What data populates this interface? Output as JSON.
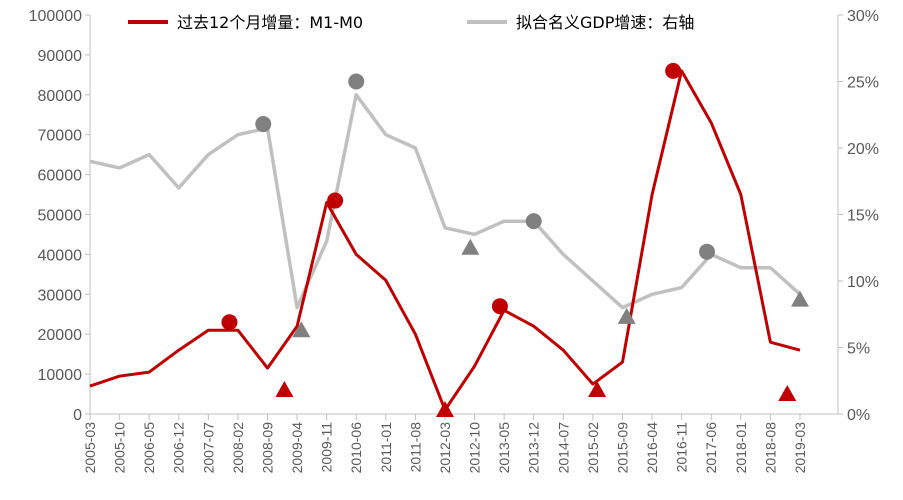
{
  "chart_data": {
    "type": "line",
    "legend_position": "top",
    "grid": false,
    "x": [
      "2005-03",
      "2005-10",
      "2006-05",
      "2006-12",
      "2007-07",
      "2008-02",
      "2008-09",
      "2009-04",
      "2009-11",
      "2010-06",
      "2011-01",
      "2011-08",
      "2012-03",
      "2012-10",
      "2013-05",
      "2013-12",
      "2014-07",
      "2015-02",
      "2015-09",
      "2016-04",
      "2016-11",
      "2017-06",
      "2018-01",
      "2018-08",
      "2019-03"
    ],
    "x_labels": [
      "2005-03",
      "2005-10",
      "2006-05",
      "2006-12",
      "2007-07",
      "2008-02",
      "2008-09",
      "2009-04",
      "2009-11",
      "2010-06",
      "2011-01",
      "2011-08",
      "2012-03",
      "2012-10",
      "2013-05",
      "2013-12",
      "2014-07",
      "2015-02",
      "2015-09",
      "2016-04",
      "2016-11",
      "2017-06",
      "2018-01",
      "2018-08",
      "2019-03"
    ],
    "y_left": {
      "ylim": [
        0,
        100000
      ],
      "ticks": [
        "0",
        "10000",
        "20000",
        "30000",
        "40000",
        "50000",
        "60000",
        "70000",
        "80000",
        "90000",
        "100000"
      ]
    },
    "y_right": {
      "ylim": [
        0,
        30
      ],
      "ticks": [
        "0%",
        "5%",
        "10%",
        "15%",
        "20%",
        "25%",
        "30%"
      ]
    },
    "series": [
      {
        "name": "过去12个月增量：M1-M0",
        "axis": "left",
        "color": "#C00000",
        "values": [
          7000,
          9500,
          10500,
          16000,
          21000,
          21000,
          11500,
          22000,
          53000,
          40000,
          33500,
          20000,
          1000,
          12000,
          26000,
          22000,
          16000,
          7500,
          13000,
          55000,
          86000,
          73000,
          55000,
          18000,
          16000
        ],
        "peaks": [
          {
            "x": "2007-12",
            "y": 23000
          },
          {
            "x": "2010-01",
            "y": 53500
          },
          {
            "x": "2013-04",
            "y": 27000
          },
          {
            "x": "2016-09",
            "y": 86000
          }
        ],
        "troughs": [
          {
            "x": "2009-01",
            "y": 6000
          },
          {
            "x": "2012-03",
            "y": 1000
          },
          {
            "x": "2015-03",
            "y": 6000
          },
          {
            "x": "2018-12",
            "y": 5000
          }
        ]
      },
      {
        "name": "拟合名义GDP增速：右轴",
        "axis": "right",
        "color": "#C0C0C0",
        "values": [
          19,
          18.5,
          19.5,
          17,
          19.5,
          21,
          21.5,
          8,
          13,
          24,
          21,
          20,
          14,
          13.5,
          14.5,
          14.5,
          12,
          10,
          8,
          9,
          9.5,
          12,
          11,
          11,
          9
        ],
        "peaks": [
          {
            "x": "2008-08",
            "y": 21.8
          },
          {
            "x": "2010-06",
            "y": 25
          },
          {
            "x": "2013-12",
            "y": 14.5
          },
          {
            "x": "2017-05",
            "y": 12.2
          }
        ],
        "troughs": [
          {
            "x": "2009-05",
            "y": 6.3
          },
          {
            "x": "2012-09",
            "y": 12.5
          },
          {
            "x": "2015-10",
            "y": 7.3
          },
          {
            "x": "2019-03",
            "y": 8.6
          }
        ]
      }
    ]
  }
}
